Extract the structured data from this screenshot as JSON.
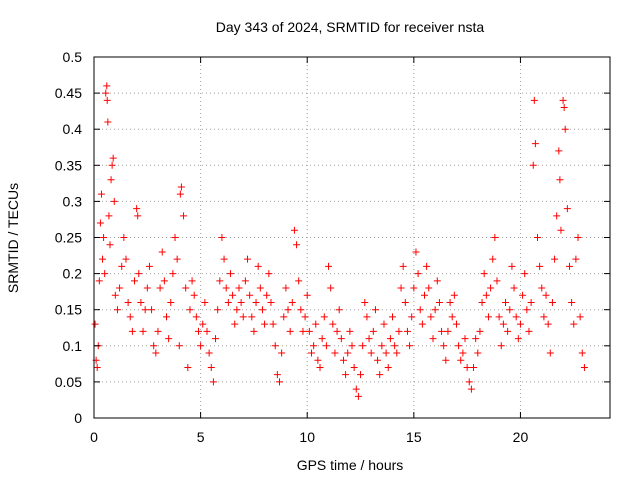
{
  "chart_data": {
    "type": "scatter",
    "title": "Day 343 of 2024, SRMTID for receiver nsta",
    "xlabel": "GPS time / hours",
    "ylabel": "SRMTID / TECUs",
    "xlim": [
      0,
      24.2
    ],
    "ylim": [
      0,
      0.5
    ],
    "x_ticks": [
      0,
      5,
      10,
      15,
      20
    ],
    "x_tick_labels": [
      "0",
      "5",
      "10",
      "15",
      "20"
    ],
    "y_ticks": [
      0,
      0.05,
      0.1,
      0.15,
      0.2,
      0.25,
      0.3,
      0.35,
      0.4,
      0.45,
      0.5
    ],
    "y_tick_labels": [
      "0",
      "0.05",
      "0.1",
      "0.15",
      "0.2",
      "0.25",
      "0.3",
      "0.35",
      "0.4",
      "0.45",
      "0.5"
    ],
    "grid": true,
    "marker": "+",
    "marker_color": "#ff0000",
    "series": [
      {
        "name": "nsta",
        "points": [
          [
            0.05,
            0.13
          ],
          [
            0.1,
            0.08
          ],
          [
            0.15,
            0.07
          ],
          [
            0.2,
            0.1
          ],
          [
            0.25,
            0.19
          ],
          [
            0.3,
            0.27
          ],
          [
            0.35,
            0.31
          ],
          [
            0.4,
            0.22
          ],
          [
            0.45,
            0.25
          ],
          [
            0.5,
            0.2
          ],
          [
            0.55,
            0.45
          ],
          [
            0.6,
            0.46
          ],
          [
            0.62,
            0.44
          ],
          [
            0.65,
            0.41
          ],
          [
            0.7,
            0.28
          ],
          [
            0.75,
            0.24
          ],
          [
            0.8,
            0.33
          ],
          [
            0.85,
            0.35
          ],
          [
            0.9,
            0.36
          ],
          [
            0.95,
            0.3
          ],
          [
            1.0,
            0.17
          ],
          [
            1.1,
            0.15
          ],
          [
            1.2,
            0.18
          ],
          [
            1.3,
            0.21
          ],
          [
            1.4,
            0.25
          ],
          [
            1.5,
            0.22
          ],
          [
            1.6,
            0.16
          ],
          [
            1.7,
            0.14
          ],
          [
            1.8,
            0.12
          ],
          [
            1.9,
            0.19
          ],
          [
            2.0,
            0.29
          ],
          [
            2.05,
            0.28
          ],
          [
            2.1,
            0.2
          ],
          [
            2.2,
            0.16
          ],
          [
            2.3,
            0.12
          ],
          [
            2.4,
            0.15
          ],
          [
            2.5,
            0.18
          ],
          [
            2.6,
            0.21
          ],
          [
            2.7,
            0.15
          ],
          [
            2.8,
            0.1
          ],
          [
            2.9,
            0.09
          ],
          [
            3.0,
            0.12
          ],
          [
            3.1,
            0.18
          ],
          [
            3.2,
            0.23
          ],
          [
            3.3,
            0.19
          ],
          [
            3.4,
            0.14
          ],
          [
            3.5,
            0.11
          ],
          [
            3.6,
            0.16
          ],
          [
            3.7,
            0.2
          ],
          [
            3.8,
            0.25
          ],
          [
            3.9,
            0.22
          ],
          [
            4.0,
            0.1
          ],
          [
            4.05,
            0.31
          ],
          [
            4.1,
            0.32
          ],
          [
            4.2,
            0.28
          ],
          [
            4.3,
            0.18
          ],
          [
            4.4,
            0.07
          ],
          [
            4.5,
            0.15
          ],
          [
            4.6,
            0.19
          ],
          [
            4.7,
            0.17
          ],
          [
            4.8,
            0.14
          ],
          [
            4.9,
            0.12
          ],
          [
            5.0,
            0.1
          ],
          [
            5.1,
            0.13
          ],
          [
            5.2,
            0.16
          ],
          [
            5.3,
            0.12
          ],
          [
            5.4,
            0.09
          ],
          [
            5.5,
            0.07
          ],
          [
            5.6,
            0.05
          ],
          [
            5.7,
            0.11
          ],
          [
            5.8,
            0.15
          ],
          [
            5.9,
            0.19
          ],
          [
            6.0,
            0.25
          ],
          [
            6.1,
            0.22
          ],
          [
            6.2,
            0.18
          ],
          [
            6.3,
            0.16
          ],
          [
            6.4,
            0.2
          ],
          [
            6.5,
            0.17
          ],
          [
            6.6,
            0.13
          ],
          [
            6.7,
            0.15
          ],
          [
            6.8,
            0.18
          ],
          [
            6.9,
            0.16
          ],
          [
            7.0,
            0.14
          ],
          [
            7.1,
            0.19
          ],
          [
            7.2,
            0.22
          ],
          [
            7.3,
            0.17
          ],
          [
            7.4,
            0.14
          ],
          [
            7.5,
            0.12
          ],
          [
            7.6,
            0.16
          ],
          [
            7.7,
            0.21
          ],
          [
            7.8,
            0.18
          ],
          [
            7.9,
            0.15
          ],
          [
            8.0,
            0.13
          ],
          [
            8.1,
            0.17
          ],
          [
            8.2,
            0.2
          ],
          [
            8.3,
            0.16
          ],
          [
            8.4,
            0.13
          ],
          [
            8.5,
            0.1
          ],
          [
            8.6,
            0.06
          ],
          [
            8.7,
            0.05
          ],
          [
            8.8,
            0.09
          ],
          [
            8.9,
            0.14
          ],
          [
            9.0,
            0.18
          ],
          [
            9.1,
            0.15
          ],
          [
            9.2,
            0.12
          ],
          [
            9.3,
            0.16
          ],
          [
            9.4,
            0.26
          ],
          [
            9.5,
            0.24
          ],
          [
            9.6,
            0.19
          ],
          [
            9.7,
            0.15
          ],
          [
            9.8,
            0.12
          ],
          [
            9.9,
            0.14
          ],
          [
            10.0,
            0.17
          ],
          [
            10.1,
            0.12
          ],
          [
            10.2,
            0.09
          ],
          [
            10.3,
            0.1
          ],
          [
            10.4,
            0.13
          ],
          [
            10.5,
            0.08
          ],
          [
            10.6,
            0.07
          ],
          [
            10.7,
            0.11
          ],
          [
            10.8,
            0.14
          ],
          [
            10.9,
            0.1
          ],
          [
            11.0,
            0.21
          ],
          [
            11.1,
            0.18
          ],
          [
            11.2,
            0.13
          ],
          [
            11.3,
            0.09
          ],
          [
            11.4,
            0.12
          ],
          [
            11.5,
            0.15
          ],
          [
            11.6,
            0.11
          ],
          [
            11.7,
            0.08
          ],
          [
            11.8,
            0.06
          ],
          [
            11.9,
            0.09
          ],
          [
            12.0,
            0.12
          ],
          [
            12.1,
            0.1
          ],
          [
            12.2,
            0.07
          ],
          [
            12.3,
            0.04
          ],
          [
            12.4,
            0.03
          ],
          [
            12.5,
            0.06
          ],
          [
            12.6,
            0.1
          ],
          [
            12.7,
            0.16
          ],
          [
            12.8,
            0.14
          ],
          [
            12.9,
            0.11
          ],
          [
            13.0,
            0.09
          ],
          [
            13.1,
            0.12
          ],
          [
            13.2,
            0.15
          ],
          [
            13.3,
            0.08
          ],
          [
            13.4,
            0.06
          ],
          [
            13.5,
            0.1
          ],
          [
            13.6,
            0.13
          ],
          [
            13.7,
            0.09
          ],
          [
            13.8,
            0.07
          ],
          [
            13.9,
            0.11
          ],
          [
            14.0,
            0.14
          ],
          [
            14.1,
            0.1
          ],
          [
            14.2,
            0.09
          ],
          [
            14.3,
            0.12
          ],
          [
            14.4,
            0.18
          ],
          [
            14.5,
            0.21
          ],
          [
            14.6,
            0.16
          ],
          [
            14.7,
            0.12
          ],
          [
            14.8,
            0.1
          ],
          [
            14.9,
            0.14
          ],
          [
            15.0,
            0.18
          ],
          [
            15.1,
            0.23
          ],
          [
            15.2,
            0.2
          ],
          [
            15.3,
            0.15
          ],
          [
            15.4,
            0.13
          ],
          [
            15.5,
            0.17
          ],
          [
            15.6,
            0.21
          ],
          [
            15.7,
            0.18
          ],
          [
            15.8,
            0.14
          ],
          [
            15.9,
            0.11
          ],
          [
            16.0,
            0.15
          ],
          [
            16.1,
            0.19
          ],
          [
            16.2,
            0.16
          ],
          [
            16.3,
            0.12
          ],
          [
            16.4,
            0.1
          ],
          [
            16.5,
            0.08
          ],
          [
            16.6,
            0.12
          ],
          [
            16.7,
            0.16
          ],
          [
            16.8,
            0.14
          ],
          [
            16.9,
            0.17
          ],
          [
            17.0,
            0.13
          ],
          [
            17.1,
            0.1
          ],
          [
            17.2,
            0.08
          ],
          [
            17.3,
            0.09
          ],
          [
            17.4,
            0.11
          ],
          [
            17.5,
            0.07
          ],
          [
            17.6,
            0.05
          ],
          [
            17.7,
            0.04
          ],
          [
            17.8,
            0.07
          ],
          [
            17.9,
            0.11
          ],
          [
            18.0,
            0.09
          ],
          [
            18.1,
            0.12
          ],
          [
            18.2,
            0.16
          ],
          [
            18.3,
            0.2
          ],
          [
            18.4,
            0.17
          ],
          [
            18.5,
            0.14
          ],
          [
            18.6,
            0.18
          ],
          [
            18.7,
            0.22
          ],
          [
            18.8,
            0.25
          ],
          [
            18.9,
            0.19
          ],
          [
            19.0,
            0.14
          ],
          [
            19.1,
            0.1
          ],
          [
            19.2,
            0.13
          ],
          [
            19.3,
            0.16
          ],
          [
            19.4,
            0.12
          ],
          [
            19.5,
            0.15
          ],
          [
            19.6,
            0.21
          ],
          [
            19.7,
            0.18
          ],
          [
            19.8,
            0.14
          ],
          [
            19.9,
            0.11
          ],
          [
            20.0,
            0.13
          ],
          [
            20.1,
            0.17
          ],
          [
            20.2,
            0.2
          ],
          [
            20.3,
            0.15
          ],
          [
            20.4,
            0.12
          ],
          [
            20.5,
            0.16
          ],
          [
            20.6,
            0.35
          ],
          [
            20.65,
            0.44
          ],
          [
            20.7,
            0.38
          ],
          [
            20.8,
            0.25
          ],
          [
            20.9,
            0.21
          ],
          [
            21.0,
            0.18
          ],
          [
            21.1,
            0.14
          ],
          [
            21.2,
            0.17
          ],
          [
            21.3,
            0.13
          ],
          [
            21.4,
            0.09
          ],
          [
            21.5,
            0.16
          ],
          [
            21.6,
            0.22
          ],
          [
            21.7,
            0.28
          ],
          [
            21.8,
            0.37
          ],
          [
            21.85,
            0.33
          ],
          [
            21.9,
            0.26
          ],
          [
            22.0,
            0.44
          ],
          [
            22.05,
            0.43
          ],
          [
            22.1,
            0.4
          ],
          [
            22.2,
            0.29
          ],
          [
            22.3,
            0.21
          ],
          [
            22.4,
            0.16
          ],
          [
            22.5,
            0.13
          ],
          [
            22.6,
            0.22
          ],
          [
            22.7,
            0.25
          ],
          [
            22.8,
            0.14
          ],
          [
            22.9,
            0.09
          ],
          [
            23.0,
            0.07
          ]
        ]
      }
    ]
  }
}
